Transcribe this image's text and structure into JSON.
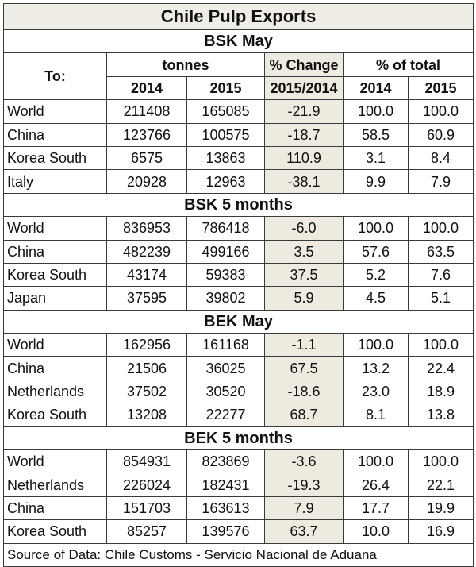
{
  "title": "Chile Pulp Exports",
  "header": {
    "to": "To:",
    "tonnes": "tonnes",
    "pct_change": "% Change",
    "pct_total": "% of total",
    "y2014": "2014",
    "y2015": "2015",
    "change_period": "2015/2014",
    "y2014b": "2014",
    "y2015b": "2015"
  },
  "sections": [
    {
      "name": "BSK May",
      "rows": [
        {
          "to": "World",
          "t2014": "211408",
          "t2015": "165085",
          "chg": "-21.9",
          "p2014": "100.0",
          "p2015": "100.0"
        },
        {
          "to": "China",
          "t2014": "123766",
          "t2015": "100575",
          "chg": "-18.7",
          "p2014": "58.5",
          "p2015": "60.9"
        },
        {
          "to": "Korea South",
          "t2014": "6575",
          "t2015": "13863",
          "chg": "110.9",
          "p2014": "3.1",
          "p2015": "8.4"
        },
        {
          "to": "Italy",
          "t2014": "20928",
          "t2015": "12963",
          "chg": "-38.1",
          "p2014": "9.9",
          "p2015": "7.9"
        }
      ]
    },
    {
      "name": "BSK 5 months",
      "rows": [
        {
          "to": "World",
          "t2014": "836953",
          "t2015": "786418",
          "chg": "-6.0",
          "p2014": "100.0",
          "p2015": "100.0"
        },
        {
          "to": "China",
          "t2014": "482239",
          "t2015": "499166",
          "chg": "3.5",
          "p2014": "57.6",
          "p2015": "63.5"
        },
        {
          "to": "Korea South",
          "t2014": "43174",
          "t2015": "59383",
          "chg": "37.5",
          "p2014": "5.2",
          "p2015": "7.6"
        },
        {
          "to": "Japan",
          "t2014": "37595",
          "t2015": "39802",
          "chg": "5.9",
          "p2014": "4.5",
          "p2015": "5.1"
        }
      ]
    },
    {
      "name": "BEK May",
      "rows": [
        {
          "to": "World",
          "t2014": "162956",
          "t2015": "161168",
          "chg": "-1.1",
          "p2014": "100.0",
          "p2015": "100.0"
        },
        {
          "to": "China",
          "t2014": "21506",
          "t2015": "36025",
          "chg": "67.5",
          "p2014": "13.2",
          "p2015": "22.4"
        },
        {
          "to": "Netherlands",
          "t2014": "37502",
          "t2015": "30520",
          "chg": "-18.6",
          "p2014": "23.0",
          "p2015": "18.9"
        },
        {
          "to": "Korea South",
          "t2014": "13208",
          "t2015": "22277",
          "chg": "68.7",
          "p2014": "8.1",
          "p2015": "13.8"
        }
      ]
    },
    {
      "name": "BEK 5 months",
      "rows": [
        {
          "to": "World",
          "t2014": "854931",
          "t2015": "823869",
          "chg": "-3.6",
          "p2014": "100.0",
          "p2015": "100.0"
        },
        {
          "to": "Netherlands",
          "t2014": "226024",
          "t2015": "182431",
          "chg": "-19.3",
          "p2014": "26.4",
          "p2015": "22.1"
        },
        {
          "to": "China",
          "t2014": "151703",
          "t2015": "163613",
          "chg": "7.9",
          "p2014": "17.7",
          "p2015": "19.9"
        },
        {
          "to": "Korea South",
          "t2014": "85257",
          "t2015": "139576",
          "chg": "63.7",
          "p2014": "10.0",
          "p2015": "16.9"
        }
      ]
    }
  ],
  "source": "Source of Data: Chile Customs - Servicio Nacional de Aduana",
  "colors": {
    "title_bg": "#f0ede6",
    "change_bg": "#efeae0",
    "border": "#3a3a3a"
  }
}
